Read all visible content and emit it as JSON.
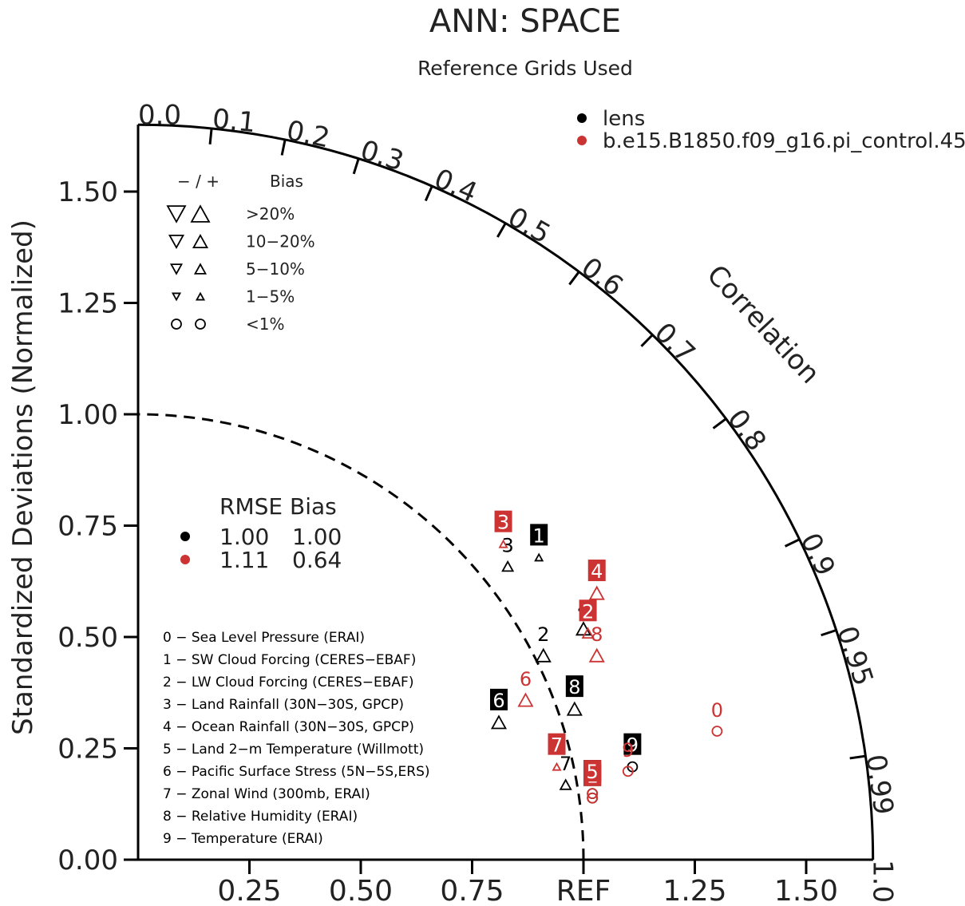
{
  "chart_data": {
    "type": "taylor",
    "title": "ANN: SPACE",
    "subtitle": "Reference Grids Used",
    "ylabel": "Standardized Deviations (Normalized)",
    "xlim": [
      0,
      1.65
    ],
    "ylim": [
      0,
      1.65
    ],
    "y_ticks": [
      "0.00",
      "0.25",
      "0.50",
      "0.75",
      "1.00",
      "1.25",
      "1.50"
    ],
    "x_ticks": [
      "0.25",
      "0.50",
      "0.75",
      "REF",
      "1.25",
      "1.50"
    ],
    "correlation_label": "Correlation",
    "correlation_ticks": [
      "0.0",
      "0.1",
      "0.2",
      "0.3",
      "0.4",
      "0.5",
      "0.6",
      "0.7",
      "0.8",
      "0.9",
      "0.95",
      "0.99",
      "1.0"
    ],
    "colors": {
      "lens": "#000000",
      "pi_control": "#cc3333"
    },
    "series": [
      {
        "name": "lens",
        "color": "#000000"
      },
      {
        "name": "b.e15.B1850.f09_g16.pi_control.45",
        "color": "#cc3333"
      }
    ],
    "bias_legend": {
      "header_sign": "− / +",
      "header_bias": "Bias",
      "rows": [
        {
          "label": ">20%",
          "shape": "triangle",
          "size": 22
        },
        {
          "label": "10−20%",
          "shape": "triangle",
          "size": 17
        },
        {
          "label": "5−10%",
          "shape": "triangle",
          "size": 13
        },
        {
          "label": "1−5%",
          "shape": "triangle",
          "size": 9
        },
        {
          "label": "<1%",
          "shape": "circle",
          "size": 12
        }
      ]
    },
    "summary": {
      "header": "RMSE Bias",
      "rows": [
        {
          "rmse": "1.00",
          "bias": "1.00",
          "color": "#000000"
        },
        {
          "rmse": "1.11",
          "bias": "0.64",
          "color": "#cc3333"
        }
      ]
    },
    "variables": [
      "0 − Sea Level Pressure (ERAI)",
      "1 − SW Cloud Forcing (CERES−EBAF)",
      "2 − LW Cloud Forcing (CERES−EBAF)",
      "3 − Land Rainfall (30N−30S, GPCP)",
      "4 − Ocean Rainfall (30N−30S, GPCP)",
      "5 − Land 2−m Temperature (Willmott)",
      "6 − Pacific Surface Stress (5N−5S,ERS)",
      "7 − Zonal Wind (300mb, ERAI)",
      "8 − Relative Humidity (ERAI)",
      "9 − Temperature (ERAI)"
    ],
    "points": [
      {
        "series": 0,
        "id": "0",
        "x": 1.02,
        "y": 0.17,
        "boxed": true,
        "marker": "circle",
        "msize": 12,
        "dir": "up"
      },
      {
        "series": 0,
        "id": "1",
        "x": 0.9,
        "y": 0.7,
        "boxed": true,
        "marker": "triangle",
        "msize": 9,
        "dir": "up"
      },
      {
        "series": 0,
        "id": "2",
        "x": 0.91,
        "y": 0.48,
        "boxed": false,
        "marker": "triangle",
        "msize": 17,
        "dir": "up"
      },
      {
        "series": 0,
        "id": "3",
        "x": 0.83,
        "y": 0.68,
        "boxed": false,
        "marker": "triangle",
        "msize": 13,
        "dir": "up"
      },
      {
        "series": 0,
        "id": "4",
        "x": 1.0,
        "y": 0.54,
        "boxed": false,
        "marker": "triangle",
        "msize": 17,
        "dir": "up"
      },
      {
        "series": 0,
        "id": "5",
        "x": 1.02,
        "y": 0.16,
        "boxed": true,
        "marker": "circle",
        "msize": 12,
        "dir": "up"
      },
      {
        "series": 0,
        "id": "6",
        "x": 0.81,
        "y": 0.33,
        "boxed": true,
        "marker": "triangle",
        "msize": 17,
        "dir": "up"
      },
      {
        "series": 0,
        "id": "7",
        "x": 0.96,
        "y": 0.19,
        "boxed": false,
        "marker": "triangle",
        "msize": 13,
        "dir": "up"
      },
      {
        "series": 0,
        "id": "8",
        "x": 0.98,
        "y": 0.36,
        "boxed": true,
        "marker": "triangle",
        "msize": 17,
        "dir": "up"
      },
      {
        "series": 0,
        "id": "9",
        "x": 1.11,
        "y": 0.23,
        "boxed": true,
        "marker": "circle",
        "msize": 12,
        "dir": "up"
      },
      {
        "series": 1,
        "id": "0",
        "x": 1.3,
        "y": 0.31,
        "boxed": false,
        "marker": "circle",
        "msize": 12,
        "dir": "up"
      },
      {
        "series": 1,
        "id": "1",
        "x": 1.02,
        "y": 0.16,
        "boxed": true,
        "marker": "circle",
        "msize": 12,
        "dir": "up"
      },
      {
        "series": 1,
        "id": "2",
        "x": 1.01,
        "y": 0.53,
        "boxed": true,
        "marker": "triangle",
        "msize": 13,
        "dir": "up"
      },
      {
        "series": 1,
        "id": "3",
        "x": 0.82,
        "y": 0.73,
        "boxed": true,
        "marker": "triangle",
        "msize": 9,
        "dir": "up"
      },
      {
        "series": 1,
        "id": "4",
        "x": 1.03,
        "y": 0.62,
        "boxed": true,
        "marker": "triangle",
        "msize": 17,
        "dir": "up"
      },
      {
        "series": 1,
        "id": "5",
        "x": 1.02,
        "y": 0.17,
        "boxed": true,
        "marker": "circle",
        "msize": 12,
        "dir": "up"
      },
      {
        "series": 1,
        "id": "6",
        "x": 0.87,
        "y": 0.38,
        "boxed": false,
        "marker": "triangle",
        "msize": 17,
        "dir": "up"
      },
      {
        "series": 1,
        "id": "7",
        "x": 0.94,
        "y": 0.23,
        "boxed": true,
        "marker": "triangle",
        "msize": 9,
        "dir": "up"
      },
      {
        "series": 1,
        "id": "8",
        "x": 1.03,
        "y": 0.48,
        "boxed": false,
        "marker": "triangle",
        "msize": 17,
        "dir": "up"
      },
      {
        "series": 1,
        "id": "9",
        "x": 1.1,
        "y": 0.22,
        "boxed": false,
        "marker": "circle",
        "msize": 12,
        "dir": "up"
      }
    ]
  }
}
